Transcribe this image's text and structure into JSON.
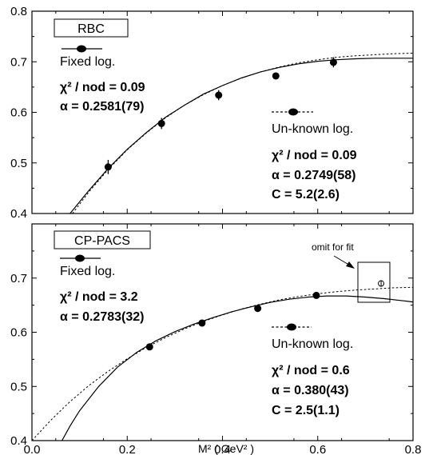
{
  "chart_data": [
    {
      "type": "scatter",
      "box_label": "RBC",
      "xlim": [
        0.0,
        0.8
      ],
      "ylim": [
        0.4,
        0.8
      ],
      "x_ticks": [
        0.0,
        0.2,
        0.4,
        0.6,
        0.8
      ],
      "y_ticks": [
        "0.4",
        "0.5",
        "0.6",
        "0.7",
        "0.8"
      ],
      "points": [
        {
          "x": 0.16,
          "y": 0.492,
          "err": 0.014
        },
        {
          "x": 0.272,
          "y": 0.578,
          "err": 0.011
        },
        {
          "x": 0.392,
          "y": 0.634,
          "err": 0.01
        },
        {
          "x": 0.512,
          "y": 0.672,
          "err": 0.006
        },
        {
          "x": 0.633,
          "y": 0.699,
          "err": 0.01
        }
      ],
      "series": [
        {
          "name": "Fixed log.",
          "style": "solid",
          "curve": [
            [
              0.08,
              0.4
            ],
            [
              0.12,
              0.446
            ],
            [
              0.16,
              0.489
            ],
            [
              0.2,
              0.527
            ],
            [
              0.24,
              0.56
            ],
            [
              0.28,
              0.59
            ],
            [
              0.32,
              0.614
            ],
            [
              0.36,
              0.636
            ],
            [
              0.4,
              0.653
            ],
            [
              0.44,
              0.668
            ],
            [
              0.48,
              0.68
            ],
            [
              0.52,
              0.689
            ],
            [
              0.56,
              0.696
            ],
            [
              0.6,
              0.701
            ],
            [
              0.64,
              0.704
            ],
            [
              0.68,
              0.706
            ],
            [
              0.72,
              0.707
            ],
            [
              0.76,
              0.707
            ],
            [
              0.8,
              0.707
            ]
          ],
          "chi2_label": "χ² / nod = 0.09",
          "params": [
            "α = 0.2581(79)"
          ]
        },
        {
          "name": "Un-known log.",
          "style": "dotted",
          "curve": [
            [
              0.085,
              0.4
            ],
            [
              0.12,
              0.443
            ],
            [
              0.16,
              0.487
            ],
            [
              0.2,
              0.526
            ],
            [
              0.24,
              0.559
            ],
            [
              0.28,
              0.589
            ],
            [
              0.32,
              0.614
            ],
            [
              0.36,
              0.635
            ],
            [
              0.4,
              0.653
            ],
            [
              0.44,
              0.668
            ],
            [
              0.48,
              0.68
            ],
            [
              0.52,
              0.69
            ],
            [
              0.56,
              0.698
            ],
            [
              0.6,
              0.704
            ],
            [
              0.64,
              0.709
            ],
            [
              0.68,
              0.712
            ],
            [
              0.72,
              0.714
            ],
            [
              0.76,
              0.716
            ],
            [
              0.8,
              0.717
            ]
          ],
          "chi2_label": "χ² / nod = 0.09",
          "params": [
            "α = 0.2749(58)",
            "C = 5.2(2.6)"
          ]
        }
      ]
    },
    {
      "type": "scatter",
      "box_label": "CP-PACS",
      "xlim": [
        0.0,
        0.8
      ],
      "ylim": [
        0.4,
        0.8
      ],
      "xlabel": "M² ( GeV² )",
      "x_ticks": [
        "0.0",
        "0.2",
        "0.4",
        "0.6",
        "0.8"
      ],
      "y_ticks": [
        "0.4",
        "0.5",
        "0.6",
        "0.7"
      ],
      "points": [
        {
          "x": 0.247,
          "y": 0.573,
          "err": 0.004
        },
        {
          "x": 0.357,
          "y": 0.617,
          "err": 0.004
        },
        {
          "x": 0.474,
          "y": 0.644,
          "err": 0.004
        },
        {
          "x": 0.597,
          "y": 0.668,
          "err": 0.004
        }
      ],
      "omitted_point": {
        "x": 0.733,
        "y": 0.69
      },
      "annotation": "omit for fit",
      "series": [
        {
          "name": "Fixed log.",
          "style": "solid",
          "curve": [
            [
              0.063,
              0.4
            ],
            [
              0.08,
              0.427
            ],
            [
              0.1,
              0.455
            ],
            [
              0.14,
              0.5
            ],
            [
              0.18,
              0.536
            ],
            [
              0.22,
              0.563
            ],
            [
              0.26,
              0.584
            ],
            [
              0.3,
              0.601
            ],
            [
              0.34,
              0.615
            ],
            [
              0.38,
              0.627
            ],
            [
              0.42,
              0.638
            ],
            [
              0.46,
              0.647
            ],
            [
              0.5,
              0.655
            ],
            [
              0.54,
              0.661
            ],
            [
              0.58,
              0.665
            ],
            [
              0.62,
              0.667
            ],
            [
              0.66,
              0.667
            ],
            [
              0.7,
              0.665
            ],
            [
              0.74,
              0.662
            ],
            [
              0.78,
              0.658
            ],
            [
              0.8,
              0.656
            ]
          ],
          "chi2_label": "χ² / nod = 3.2",
          "params": [
            "α = 0.2783(32)"
          ]
        },
        {
          "name": "Un-known log.",
          "style": "dotted",
          "curve": [
            [
              0.0,
              0.4
            ],
            [
              0.04,
              0.438
            ],
            [
              0.08,
              0.472
            ],
            [
              0.12,
              0.502
            ],
            [
              0.16,
              0.528
            ],
            [
              0.2,
              0.551
            ],
            [
              0.24,
              0.572
            ],
            [
              0.28,
              0.59
            ],
            [
              0.32,
              0.606
            ],
            [
              0.36,
              0.62
            ],
            [
              0.4,
              0.632
            ],
            [
              0.44,
              0.643
            ],
            [
              0.48,
              0.652
            ],
            [
              0.52,
              0.66
            ],
            [
              0.56,
              0.666
            ],
            [
              0.6,
              0.671
            ],
            [
              0.64,
              0.675
            ],
            [
              0.68,
              0.678
            ],
            [
              0.72,
              0.68
            ],
            [
              0.76,
              0.682
            ],
            [
              0.8,
              0.683
            ]
          ],
          "chi2_label": "χ² / nod = 0.6",
          "params": [
            "α = 0.380(43)",
            "C = 2.5(1.1)"
          ]
        }
      ]
    }
  ]
}
